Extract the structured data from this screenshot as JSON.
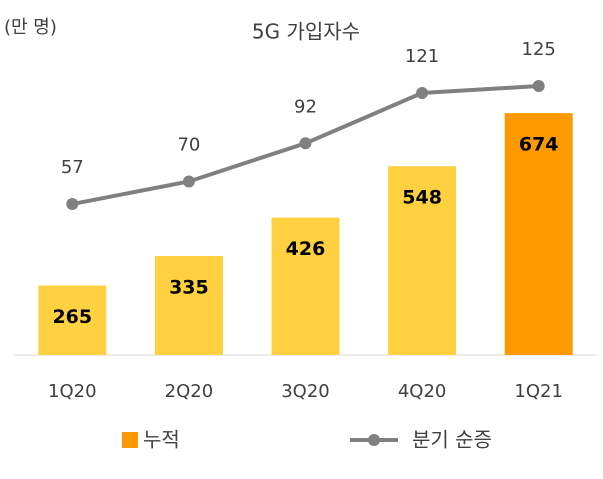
{
  "chart_data": {
    "type": "bar_line",
    "title": "5G 가입자수",
    "unit_label": "(만 명)",
    "categories": [
      "1Q20",
      "2Q20",
      "3Q20",
      "4Q20",
      "1Q21"
    ],
    "ylim": [
      100,
      800
    ],
    "y2lim": [
      -30,
      140
    ],
    "series": [
      {
        "name": "누적",
        "type": "bar",
        "color": "#FF9900",
        "colors": [
          "#FFD140",
          "#FFD140",
          "#FFD140",
          "#FFD140",
          "#FF9900"
        ],
        "values": [
          265,
          335,
          426,
          548,
          674
        ]
      },
      {
        "name": "분기 순증",
        "type": "line",
        "axis": "y2",
        "color": "#808080",
        "values": [
          57,
          70,
          92,
          121,
          125
        ]
      }
    ],
    "legend": "bottom"
  }
}
